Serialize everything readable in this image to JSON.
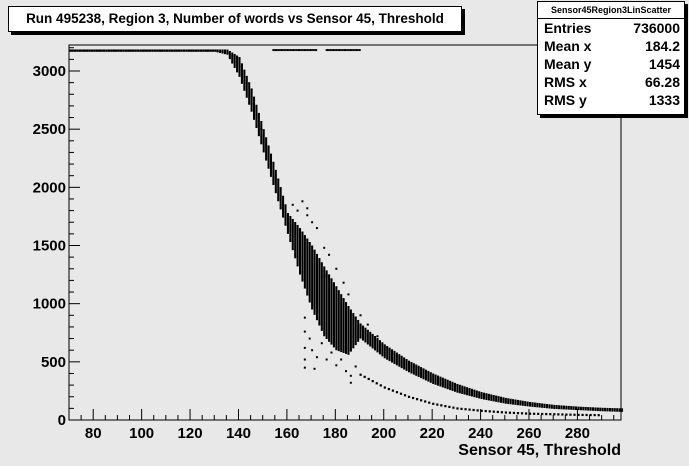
{
  "chart_data": {
    "type": "scatter",
    "title": "Run 495238, Region 3, Number of words vs Sensor 45, Threshold",
    "xlabel": "Sensor 45, Threshold",
    "ylabel": "",
    "xlim": [
      70,
      298
    ],
    "ylim": [
      0,
      3200
    ],
    "x_ticks": [
      80,
      100,
      120,
      140,
      160,
      180,
      200,
      220,
      240,
      260,
      280
    ],
    "y_ticks": [
      0,
      500,
      1000,
      1500,
      2000,
      2500,
      3000
    ],
    "grid": false,
    "stats": {
      "name": "Sensor45Region3LinScatter",
      "rows": [
        {
          "label": "Entries",
          "value": "736000"
        },
        {
          "label": "Mean x",
          "value": "184.2"
        },
        {
          "label": "Mean y",
          "value": "1454"
        },
        {
          "label": "RMS x",
          "value": "66.28"
        },
        {
          "label": "RMS y",
          "value": "1333"
        }
      ]
    },
    "main_band": [
      {
        "x": 70,
        "y_low": 3165,
        "y_high": 3185
      },
      {
        "x": 130,
        "y_low": 3165,
        "y_high": 3185
      },
      {
        "x": 135,
        "y_low": 3140,
        "y_high": 3185
      },
      {
        "x": 140,
        "y_low": 2950,
        "y_high": 3120
      },
      {
        "x": 145,
        "y_low": 2650,
        "y_high": 2850
      },
      {
        "x": 150,
        "y_low": 2300,
        "y_high": 2500
      },
      {
        "x": 155,
        "y_low": 1950,
        "y_high": 2150
      },
      {
        "x": 160,
        "y_low": 1600,
        "y_high": 1780
      },
      {
        "x": 165,
        "y_low": 1250,
        "y_high": 1650
      },
      {
        "x": 170,
        "y_low": 950,
        "y_high": 1500
      },
      {
        "x": 175,
        "y_low": 720,
        "y_high": 1320
      },
      {
        "x": 180,
        "y_low": 600,
        "y_high": 1150
      },
      {
        "x": 185,
        "y_low": 560,
        "y_high": 980
      },
      {
        "x": 190,
        "y_low": 700,
        "y_high": 830
      },
      {
        "x": 200,
        "y_low": 530,
        "y_high": 650
      },
      {
        "x": 210,
        "y_low": 410,
        "y_high": 510
      },
      {
        "x": 220,
        "y_low": 310,
        "y_high": 400
      },
      {
        "x": 230,
        "y_low": 235,
        "y_high": 310
      },
      {
        "x": 240,
        "y_low": 180,
        "y_high": 240
      },
      {
        "x": 250,
        "y_low": 140,
        "y_high": 190
      },
      {
        "x": 260,
        "y_low": 115,
        "y_high": 155
      },
      {
        "x": 270,
        "y_low": 95,
        "y_high": 130
      },
      {
        "x": 280,
        "y_low": 85,
        "y_high": 115
      },
      {
        "x": 290,
        "y_low": 75,
        "y_high": 105
      },
      {
        "x": 298,
        "y_low": 70,
        "y_high": 100
      }
    ],
    "lower_branch": [
      {
        "x": 190,
        "y": 390
      },
      {
        "x": 200,
        "y": 280
      },
      {
        "x": 210,
        "y": 200
      },
      {
        "x": 220,
        "y": 140
      },
      {
        "x": 230,
        "y": 100
      },
      {
        "x": 240,
        "y": 80
      },
      {
        "x": 250,
        "y": 65
      },
      {
        "x": 260,
        "y": 55
      },
      {
        "x": 270,
        "y": 50
      },
      {
        "x": 280,
        "y": 45
      },
      {
        "x": 290,
        "y": 42
      }
    ],
    "outliers": [
      {
        "x": 162,
        "y": 1850
      },
      {
        "x": 164,
        "y": 1800
      },
      {
        "x": 166,
        "y": 1880
      },
      {
        "x": 168,
        "y": 1760
      },
      {
        "x": 168,
        "y": 1820
      },
      {
        "x": 170,
        "y": 1700
      },
      {
        "x": 167,
        "y": 880
      },
      {
        "x": 167,
        "y": 760
      },
      {
        "x": 167,
        "y": 620
      },
      {
        "x": 167,
        "y": 520
      },
      {
        "x": 167,
        "y": 450
      },
      {
        "x": 169,
        "y": 700
      },
      {
        "x": 170,
        "y": 600
      },
      {
        "x": 172,
        "y": 540
      },
      {
        "x": 174,
        "y": 660
      },
      {
        "x": 176,
        "y": 520
      },
      {
        "x": 178,
        "y": 580
      },
      {
        "x": 180,
        "y": 470
      },
      {
        "x": 182,
        "y": 520
      },
      {
        "x": 184,
        "y": 420
      },
      {
        "x": 186,
        "y": 380
      },
      {
        "x": 188,
        "y": 460
      },
      {
        "x": 186,
        "y": 320
      },
      {
        "x": 172,
        "y": 1650
      },
      {
        "x": 175,
        "y": 1480
      },
      {
        "x": 177,
        "y": 1420
      },
      {
        "x": 180,
        "y": 1300
      },
      {
        "x": 183,
        "y": 1180
      },
      {
        "x": 185,
        "y": 1080
      },
      {
        "x": 190,
        "y": 900
      },
      {
        "x": 193,
        "y": 820
      },
      {
        "x": 197,
        "y": 720
      },
      {
        "x": 152,
        "y": 2200
      },
      {
        "x": 158,
        "y": 1800
      },
      {
        "x": 149,
        "y": 2500
      },
      {
        "x": 171,
        "y": 440
      },
      {
        "x": 178,
        "y": 700
      },
      {
        "x": 179,
        "y": 1160
      },
      {
        "x": 184,
        "y": 890
      },
      {
        "x": 176,
        "y": 1240
      }
    ],
    "flat_top_segments": [
      {
        "x_start": 154,
        "x_end": 172,
        "y": 3180
      },
      {
        "x_start": 176,
        "x_end": 190,
        "y": 3180
      }
    ]
  }
}
